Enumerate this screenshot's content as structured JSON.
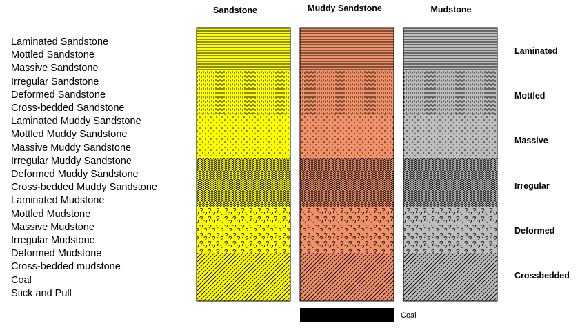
{
  "legend_items": [
    "Laminated Sandstone",
    "Mottled Sandstone",
    "Massive Sandstone",
    "Irregular  Sandstone",
    "Deformed Sandstone",
    "Cross-bedded Sandstone",
    "Laminated Muddy Sandstone",
    "Mottled Muddy Sandstone",
    "Massive Muddy  Sandstone",
    "Irregular  Muddy Sandstone",
    "Deformed Muddy Sandstone",
    "Cross-bedded Muddy Sandstone",
    "Laminated Mudstone",
    "Mottled Mudstone",
    "Massive Mudstone",
    "Irregular  Mudstone",
    "Deformed Mudstone",
    "Cross-bedded mudstone",
    "Coal",
    "Stick and Pull"
  ],
  "columns": [
    {
      "label": "Sandstone",
      "color": "#ffff00"
    },
    {
      "label": "Muddy Sandstone",
      "color": "#f0916a"
    },
    {
      "label": "Mudstone",
      "color": "#bdbdbd"
    }
  ],
  "rows": [
    {
      "label": "Laminated",
      "pattern": "laminated"
    },
    {
      "label": "Mottled",
      "pattern": "mottled"
    },
    {
      "label": "Massive",
      "pattern": "massive"
    },
    {
      "label": "Irregular",
      "pattern": "irregular"
    },
    {
      "label": "Deformed",
      "pattern": "deformed"
    },
    {
      "label": "Crossbedded",
      "pattern": "crossbedded"
    }
  ],
  "coal": {
    "label": "Coal",
    "color": "#000000"
  }
}
